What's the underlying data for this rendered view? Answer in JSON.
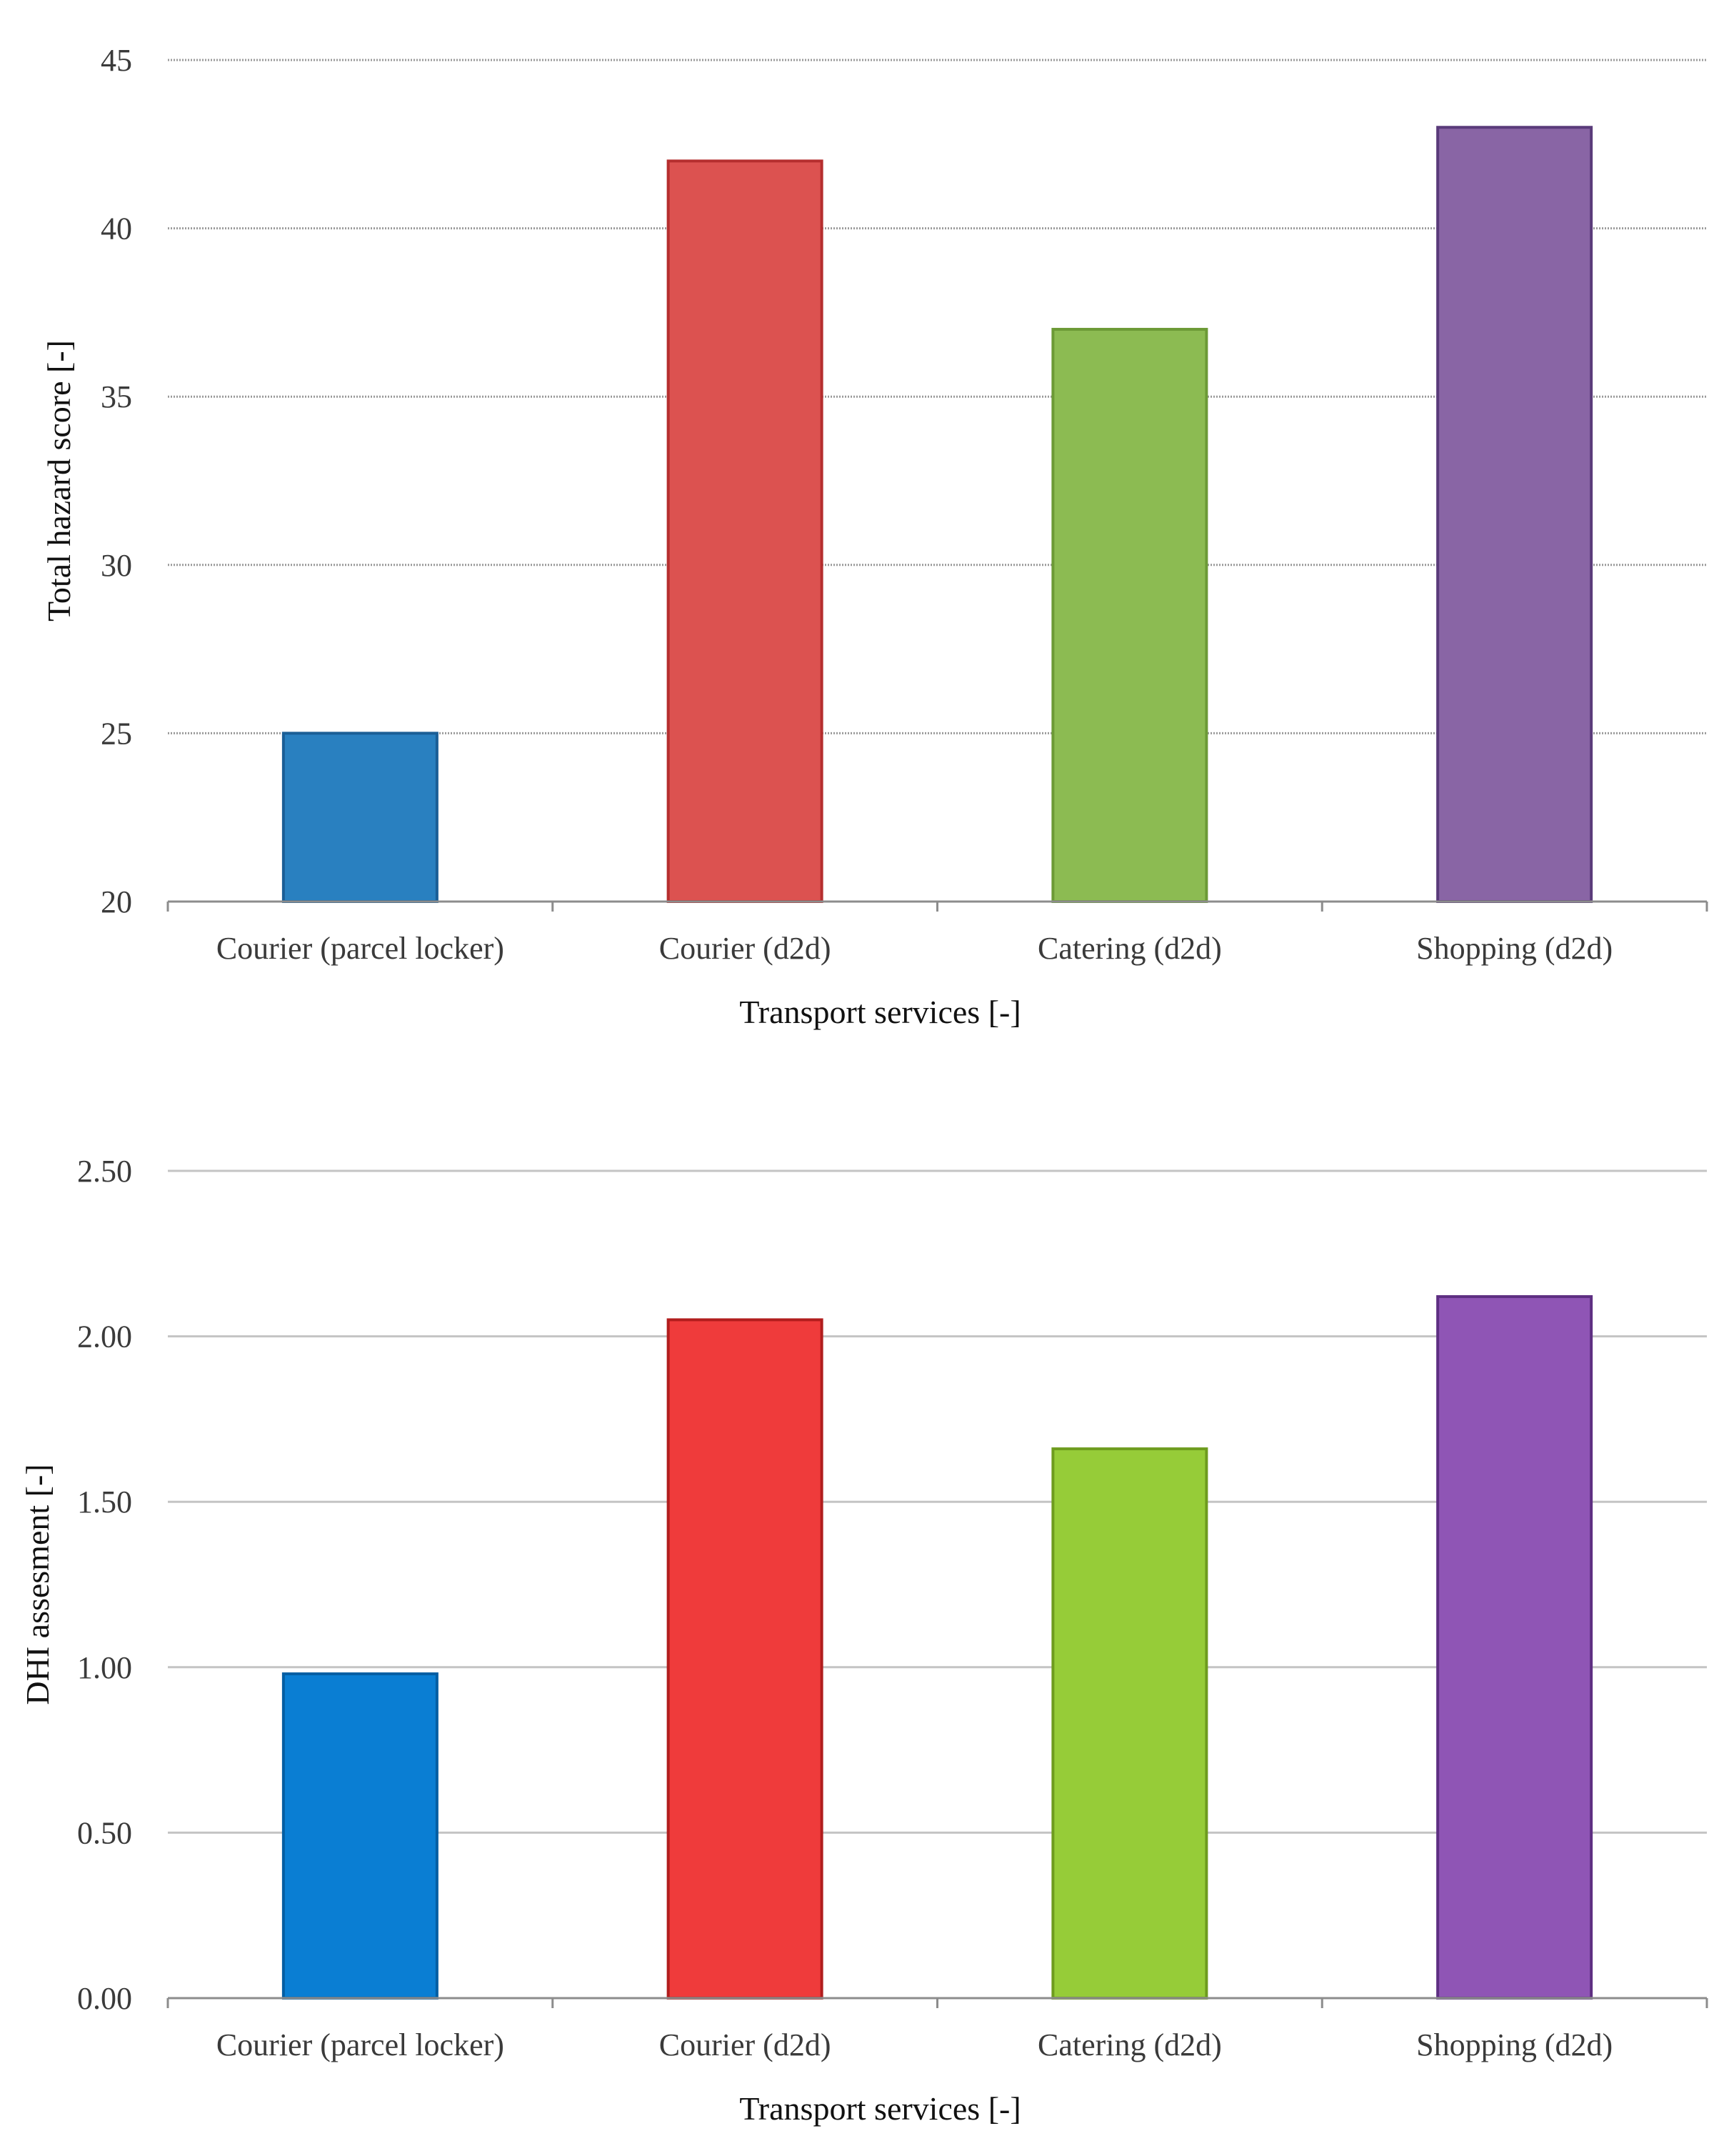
{
  "chart_data": [
    {
      "type": "bar",
      "categories": [
        "Courier (parcel locker)",
        "Courier (d2d)",
        "Catering (d2d)",
        "Shopping (d2d)"
      ],
      "values": [
        25,
        42,
        37,
        43
      ],
      "ylim": [
        20,
        45
      ],
      "yticks": [
        20,
        25,
        30,
        35,
        40,
        45
      ],
      "ytick_labels": [
        "20",
        "25",
        "30",
        "35",
        "40",
        "45"
      ],
      "title": "",
      "xlabel": "Transport services [-]",
      "ylabel": "Total hazard score [-]",
      "grid": true,
      "bar_colors": [
        "#2980c0",
        "#dc5250",
        "#8cbb52",
        "#8965a5"
      ],
      "bar_edge_colors": [
        "#1a5e96",
        "#b52e2e",
        "#6c9a36",
        "#5a3b7a"
      ],
      "grid_style": "dotted"
    },
    {
      "type": "bar",
      "categories": [
        "Courier (parcel locker)",
        "Courier (d2d)",
        "Catering (d2d)",
        "Shopping (d2d)"
      ],
      "values": [
        0.98,
        2.05,
        1.66,
        2.12
      ],
      "ylim": [
        0,
        2.5
      ],
      "yticks": [
        0,
        0.5,
        1,
        1.5,
        2,
        2.5
      ],
      "ytick_labels": [
        "0.00",
        "0.50",
        "1.00",
        "1.50",
        "2.00",
        "2.50"
      ],
      "title": "",
      "xlabel": "Transport services [-]",
      "ylabel": "DHI assesment [-]",
      "grid": true,
      "bar_colors": [
        "#0a7ed3",
        "#ef3b3b",
        "#96cc38",
        "#8f55b5"
      ],
      "bar_edge_colors": [
        "#045ea3",
        "#b11d1d",
        "#6e9c1e",
        "#5e2f82"
      ],
      "grid_style": "solid"
    }
  ]
}
